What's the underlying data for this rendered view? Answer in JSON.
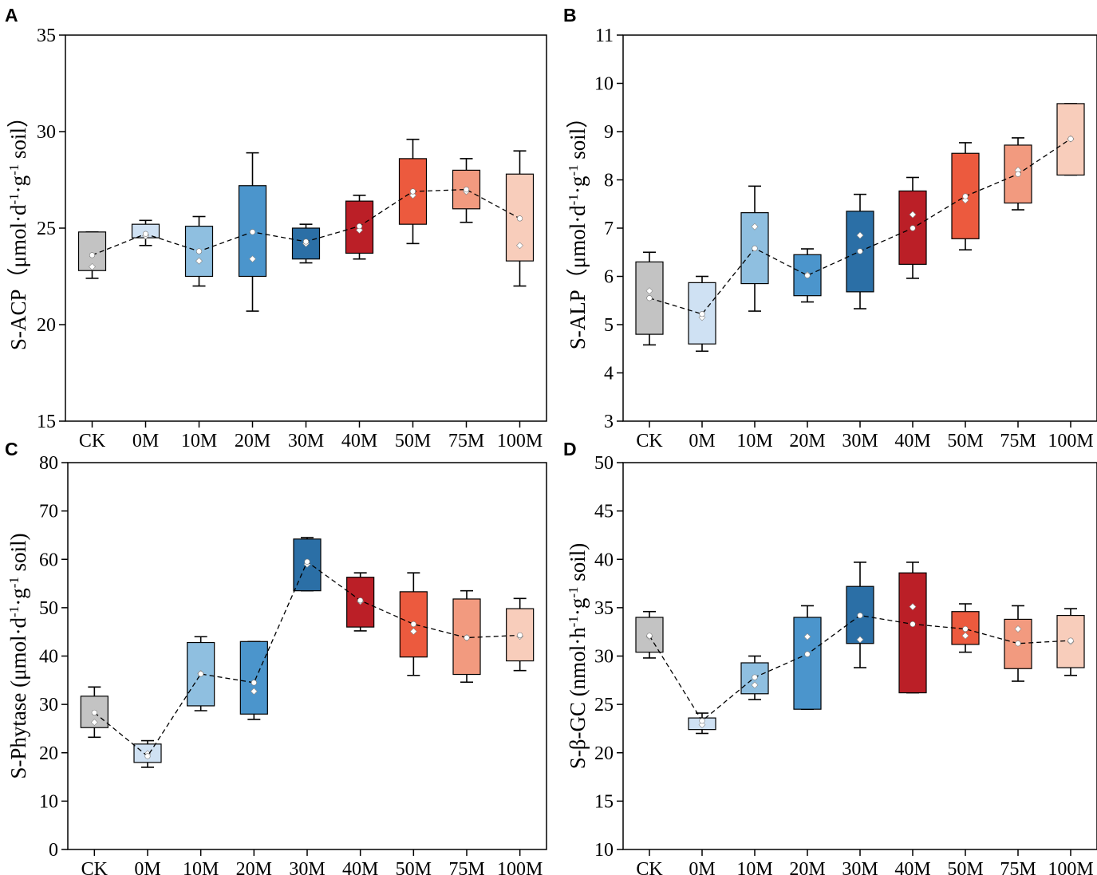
{
  "figure": {
    "colors": {
      "CK": "#c3c3c3",
      "0M": "#cfe1f3",
      "10M": "#8fbfe0",
      "20M": "#4b95cc",
      "30M": "#2b6fa6",
      "40M": "#bb1f27",
      "50M": "#ec5a3e",
      "75M": "#f29a7f",
      "100M": "#f8cdbb"
    }
  },
  "chart_data": [
    {
      "panel": "A",
      "type": "box",
      "categories": [
        "CK",
        "0M",
        "10M",
        "20M",
        "30M",
        "40M",
        "50M",
        "75M",
        "100M"
      ],
      "ylabel_main": "S-ACP（μmol·d",
      "ylabel_sup1": "-1",
      "ylabel_mid": "·g",
      "ylabel_sup2": "-1",
      "ylabel_end": " soil）",
      "ylim": [
        15,
        35
      ],
      "yticks": [
        "15",
        "20",
        "25",
        "30",
        "35"
      ],
      "tick_values": [
        15,
        20,
        25,
        30,
        35
      ],
      "boxes": [
        {
          "q1": 22.8,
          "q3": 24.8,
          "min": 22.4,
          "max": 24.8,
          "mean": 23.6,
          "pts": [
            23.0
          ]
        },
        {
          "q1": 24.5,
          "q3": 25.2,
          "min": 24.1,
          "max": 25.4,
          "mean": 24.7,
          "pts": [
            24.6
          ]
        },
        {
          "q1": 22.5,
          "q3": 25.1,
          "min": 22.0,
          "max": 25.6,
          "mean": 23.8,
          "pts": [
            23.3
          ]
        },
        {
          "q1": 22.5,
          "q3": 27.2,
          "min": 20.7,
          "max": 28.9,
          "mean": 24.8,
          "pts": [
            23.4
          ]
        },
        {
          "q1": 23.4,
          "q3": 25.0,
          "min": 23.2,
          "max": 25.2,
          "mean": 24.3,
          "pts": [
            24.2
          ]
        },
        {
          "q1": 23.7,
          "q3": 26.4,
          "min": 23.4,
          "max": 26.7,
          "mean": 25.1,
          "pts": [
            24.9
          ]
        },
        {
          "q1": 25.2,
          "q3": 28.6,
          "min": 24.2,
          "max": 29.6,
          "mean": 26.9,
          "pts": [
            26.7
          ]
        },
        {
          "q1": 26.0,
          "q3": 28.0,
          "min": 25.3,
          "max": 28.6,
          "mean": 27.0,
          "pts": [
            26.9
          ]
        },
        {
          "q1": 23.3,
          "q3": 27.8,
          "min": 22.0,
          "max": 29.0,
          "mean": 25.5,
          "pts": [
            24.1
          ]
        }
      ]
    },
    {
      "panel": "B",
      "type": "box",
      "categories": [
        "CK",
        "0M",
        "10M",
        "20M",
        "30M",
        "40M",
        "50M",
        "75M",
        "100M"
      ],
      "ylabel_main": "S-ALP（μmol·d",
      "ylabel_sup1": "-1",
      "ylabel_mid": "·g",
      "ylabel_sup2": "-1",
      "ylabel_end": " soil）",
      "ylim": [
        3,
        11
      ],
      "yticks": [
        "3",
        "4",
        "5",
        "6",
        "7",
        "8",
        "9",
        "10",
        "11"
      ],
      "tick_values": [
        3,
        4,
        5,
        6,
        7,
        8,
        9,
        10,
        11
      ],
      "boxes": [
        {
          "q1": 4.8,
          "q3": 6.3,
          "min": 4.58,
          "max": 6.5,
          "mean": 5.55,
          "pts": [
            5.7
          ]
        },
        {
          "q1": 4.6,
          "q3": 5.87,
          "min": 4.45,
          "max": 6.0,
          "mean": 5.22,
          "pts": [
            5.15
          ]
        },
        {
          "q1": 5.85,
          "q3": 7.32,
          "min": 5.28,
          "max": 7.87,
          "mean": 6.58,
          "pts": [
            7.03
          ]
        },
        {
          "q1": 5.6,
          "q3": 6.45,
          "min": 5.47,
          "max": 6.57,
          "mean": 6.02,
          "pts": [
            6.03
          ]
        },
        {
          "q1": 5.68,
          "q3": 7.35,
          "min": 5.33,
          "max": 7.7,
          "mean": 6.52,
          "pts": [
            6.85
          ]
        },
        {
          "q1": 6.25,
          "q3": 7.77,
          "min": 5.96,
          "max": 8.05,
          "mean": 7.0,
          "pts": [
            7.28
          ]
        },
        {
          "q1": 6.78,
          "q3": 8.55,
          "min": 6.55,
          "max": 8.77,
          "mean": 7.66,
          "pts": [
            7.58
          ]
        },
        {
          "q1": 7.52,
          "q3": 8.72,
          "min": 7.38,
          "max": 8.87,
          "mean": 8.12,
          "pts": [
            8.2
          ]
        },
        {
          "q1": 8.1,
          "q3": 9.58,
          "min": 8.1,
          "max": 9.58,
          "mean": 8.85,
          "pts": [
            8.85
          ]
        }
      ]
    },
    {
      "panel": "C",
      "type": "box",
      "categories": [
        "CK",
        "0M",
        "10M",
        "20M",
        "30M",
        "40M",
        "50M",
        "75M",
        "100M"
      ],
      "ylabel_main": "S-Phytase (μmol·d",
      "ylabel_sup1": "-1",
      "ylabel_mid": "·g",
      "ylabel_sup2": "-1",
      "ylabel_end": " soil)",
      "ylim": [
        0,
        80
      ],
      "yticks": [
        "0",
        "10",
        "20",
        "30",
        "40",
        "50",
        "60",
        "70",
        "80"
      ],
      "tick_values": [
        0,
        10,
        20,
        30,
        40,
        50,
        60,
        70,
        80
      ],
      "boxes": [
        {
          "q1": 25.2,
          "q3": 31.7,
          "min": 23.2,
          "max": 33.6,
          "mean": 28.3,
          "pts": [
            26.3
          ]
        },
        {
          "q1": 18.0,
          "q3": 21.8,
          "min": 17.0,
          "max": 22.5,
          "mean": 19.3,
          "pts": [
            19.8
          ]
        },
        {
          "q1": 29.7,
          "q3": 42.8,
          "min": 28.7,
          "max": 44.0,
          "mean": 36.3,
          "pts": [
            36.4
          ]
        },
        {
          "q1": 28.0,
          "q3": 43.0,
          "min": 26.9,
          "max": 43.0,
          "mean": 34.5,
          "pts": [
            32.7
          ]
        },
        {
          "q1": 53.5,
          "q3": 64.2,
          "min": 53.5,
          "max": 64.5,
          "mean": 59.5,
          "pts": [
            59.0
          ]
        },
        {
          "q1": 46.0,
          "q3": 56.3,
          "min": 45.2,
          "max": 57.2,
          "mean": 51.5,
          "pts": [
            51.3
          ]
        },
        {
          "q1": 39.8,
          "q3": 53.3,
          "min": 36.0,
          "max": 57.2,
          "mean": 46.6,
          "pts": [
            45.1
          ]
        },
        {
          "q1": 36.2,
          "q3": 51.8,
          "min": 34.6,
          "max": 53.5,
          "mean": 43.8,
          "pts": [
            43.8
          ]
        },
        {
          "q1": 39.0,
          "q3": 49.8,
          "min": 37.0,
          "max": 51.9,
          "mean": 44.3,
          "pts": [
            44.1
          ]
        }
      ]
    },
    {
      "panel": "D",
      "type": "box",
      "categories": [
        "CK",
        "0M",
        "10M",
        "20M",
        "30M",
        "40M",
        "50M",
        "75M",
        "100M"
      ],
      "ylabel_main": "S-β-GC (nmol·h",
      "ylabel_sup1": "-1",
      "ylabel_mid": "·g",
      "ylabel_sup2": "-1",
      "ylabel_end": " soil)",
      "ylim": [
        10,
        50
      ],
      "yticks": [
        "10",
        "15",
        "20",
        "25",
        "30",
        "35",
        "40",
        "45",
        "50"
      ],
      "tick_values": [
        10,
        15,
        20,
        25,
        30,
        35,
        40,
        45,
        50
      ],
      "boxes": [
        {
          "q1": 30.4,
          "q3": 34.0,
          "min": 29.8,
          "max": 34.6,
          "mean": 32.1,
          "pts": [
            32.0
          ]
        },
        {
          "q1": 22.4,
          "q3": 23.6,
          "min": 22.0,
          "max": 24.1,
          "mean": 23.3,
          "pts": [
            22.9
          ]
        },
        {
          "q1": 26.1,
          "q3": 29.3,
          "min": 25.5,
          "max": 30.0,
          "mean": 27.8,
          "pts": [
            27.0
          ]
        },
        {
          "q1": 24.5,
          "q3": 34.0,
          "min": 24.5,
          "max": 35.2,
          "mean": 30.2,
          "pts": [
            32.0
          ]
        },
        {
          "q1": 31.3,
          "q3": 37.2,
          "min": 28.8,
          "max": 39.7,
          "mean": 34.2,
          "pts": [
            31.7
          ]
        },
        {
          "q1": 26.2,
          "q3": 38.6,
          "min": 26.2,
          "max": 39.7,
          "mean": 33.3,
          "pts": [
            35.1
          ]
        },
        {
          "q1": 31.2,
          "q3": 34.6,
          "min": 30.4,
          "max": 35.4,
          "mean": 32.8,
          "pts": [
            32.1
          ]
        },
        {
          "q1": 28.7,
          "q3": 33.8,
          "min": 27.4,
          "max": 35.2,
          "mean": 31.3,
          "pts": [
            32.8
          ]
        },
        {
          "q1": 28.8,
          "q3": 34.2,
          "min": 28.0,
          "max": 34.9,
          "mean": 31.6,
          "pts": [
            31.5
          ]
        }
      ]
    }
  ]
}
